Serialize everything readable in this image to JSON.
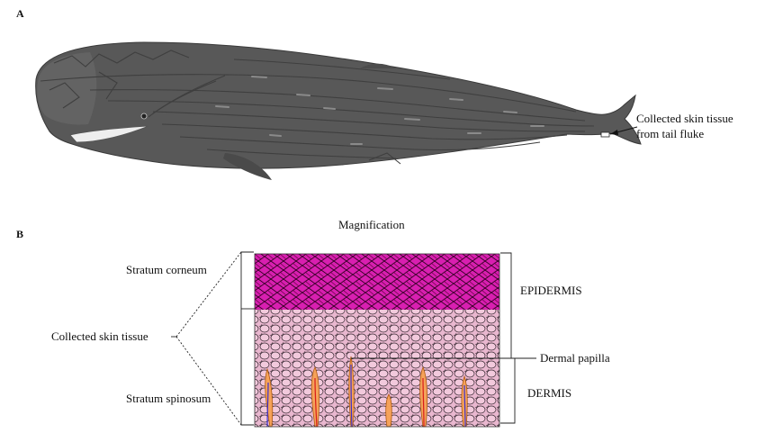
{
  "panels": {
    "a": "A",
    "b": "B"
  },
  "whale": {
    "label_line1": "Collected skin tissue",
    "label_line2": "from tail fluke",
    "body_color": "#5a5a5a",
    "belly_color": "#6b6b6b"
  },
  "magnification": "Magnification",
  "skin": {
    "stratum_corneum": "Stratum corneum",
    "stratum_spinosum": "Stratum spinosum",
    "collected_tissue": "Collected skin tissue",
    "epidermis": "EPIDERMIS",
    "dermis": "DERMIS",
    "dermal_papilla": "Dermal papilla",
    "corneum_color": "#d81fb0",
    "spinosum_color": "#e9b7cf",
    "papilla_color": "#f5a25a"
  }
}
